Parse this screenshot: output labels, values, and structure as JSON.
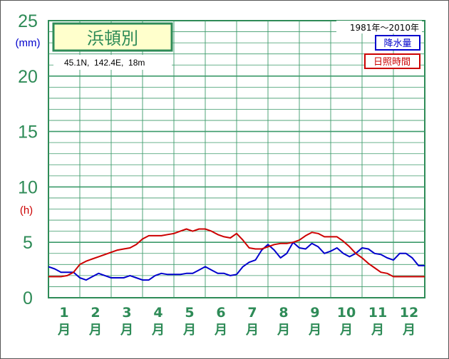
{
  "chart_data": {
    "type": "line",
    "title": "浜頓別",
    "location": "45.1N,  142.4E,  18m",
    "period": "1981年～2010年",
    "y_unit_precip": "(mm)",
    "y_unit_sun": "(h)",
    "ylim": [
      0,
      25
    ],
    "y_ticks": [
      "0",
      "5",
      "10",
      "15",
      "20",
      "25"
    ],
    "month_numbers": [
      "1",
      "2",
      "3",
      "4",
      "5",
      "6",
      "7",
      "8",
      "9",
      "10",
      "11",
      "12"
    ],
    "month_suffix": "月",
    "series": [
      {
        "name": "降水量",
        "color": "#0000cc",
        "x": [
          0.5,
          0.7,
          0.9,
          1.1,
          1.3,
          1.5,
          1.7,
          1.9,
          2.1,
          2.3,
          2.5,
          2.7,
          2.9,
          3.1,
          3.3,
          3.5,
          3.7,
          3.9,
          4.1,
          4.3,
          4.5,
          4.7,
          4.9,
          5.1,
          5.3,
          5.5,
          5.7,
          5.9,
          6.1,
          6.3,
          6.5,
          6.7,
          6.9,
          7.1,
          7.3,
          7.5,
          7.7,
          7.9,
          8.1,
          8.3,
          8.5,
          8.7,
          8.9,
          9.1,
          9.3,
          9.5,
          9.7,
          9.9,
          10.1,
          10.3,
          10.5,
          10.7,
          10.9,
          11.1,
          11.3,
          11.5,
          11.7,
          11.9,
          12.1,
          12.3,
          12.5
        ],
        "y": [
          2.8,
          2.6,
          2.3,
          2.3,
          2.3,
          1.8,
          1.6,
          1.9,
          2.2,
          2.0,
          1.8,
          1.8,
          1.8,
          2.0,
          1.8,
          1.6,
          1.6,
          2.0,
          2.2,
          2.1,
          2.1,
          2.1,
          2.2,
          2.2,
          2.5,
          2.8,
          2.5,
          2.2,
          2.2,
          2.0,
          2.1,
          2.8,
          3.2,
          3.4,
          4.3,
          4.8,
          4.3,
          3.6,
          4.0,
          5.0,
          4.5,
          4.4,
          4.9,
          4.6,
          4.0,
          4.2,
          4.5,
          4.0,
          3.7,
          4.0,
          4.5,
          4.4,
          4.0,
          3.9,
          3.6,
          3.4,
          4.0,
          4.0,
          3.6,
          2.9,
          2.9
        ]
      },
      {
        "name": "日照時間",
        "color": "#cc0000",
        "x": [
          0.5,
          0.7,
          0.9,
          1.1,
          1.3,
          1.5,
          1.7,
          1.9,
          2.1,
          2.3,
          2.5,
          2.7,
          2.9,
          3.1,
          3.3,
          3.5,
          3.7,
          3.9,
          4.1,
          4.3,
          4.5,
          4.7,
          4.9,
          5.1,
          5.3,
          5.5,
          5.7,
          5.9,
          6.1,
          6.3,
          6.5,
          6.7,
          6.9,
          7.1,
          7.3,
          7.5,
          7.7,
          7.9,
          8.1,
          8.3,
          8.5,
          8.7,
          8.9,
          9.1,
          9.3,
          9.5,
          9.7,
          9.9,
          10.1,
          10.3,
          10.5,
          10.7,
          10.9,
          11.1,
          11.3,
          11.5,
          11.7,
          11.9,
          12.1,
          12.3,
          12.5
        ],
        "y": [
          1.9,
          1.9,
          1.9,
          2.0,
          2.3,
          3.0,
          3.3,
          3.5,
          3.7,
          3.9,
          4.1,
          4.3,
          4.4,
          4.5,
          4.8,
          5.3,
          5.6,
          5.6,
          5.6,
          5.7,
          5.8,
          6.0,
          6.2,
          6.0,
          6.2,
          6.2,
          6.0,
          5.7,
          5.5,
          5.4,
          5.8,
          5.2,
          4.5,
          4.4,
          4.4,
          4.6,
          4.8,
          4.9,
          4.9,
          5.0,
          5.2,
          5.6,
          5.9,
          5.8,
          5.5,
          5.5,
          5.5,
          5.1,
          4.6,
          4.0,
          3.6,
          3.1,
          2.7,
          2.3,
          2.2,
          1.9,
          1.9,
          1.9,
          1.9,
          1.9,
          1.9
        ]
      }
    ]
  }
}
